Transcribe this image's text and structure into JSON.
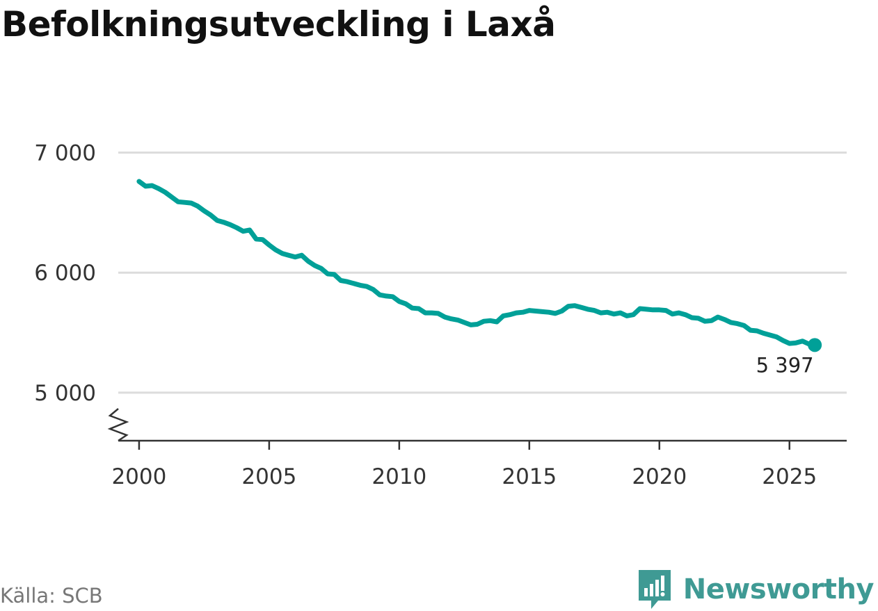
{
  "title": "Befolkningsutveckling i Laxå",
  "source": "Källa: SCB",
  "brand": {
    "name": "Newsworthy",
    "icon": "newsworthy-logo-icon",
    "color": "#3f9a94"
  },
  "chart_data": {
    "type": "line",
    "title": "Befolkningsutveckling i Laxå",
    "xlabel": "",
    "ylabel": "",
    "xlim": [
      1999.2,
      2027.2
    ],
    "ylim": [
      4600,
      7200
    ],
    "y_axis_break": true,
    "x_ticks": [
      2000,
      2005,
      2010,
      2015,
      2020,
      2025
    ],
    "x_tick_labels": [
      "2000",
      "2005",
      "2010",
      "2015",
      "2020",
      "2025"
    ],
    "y_ticks": [
      5000,
      6000,
      7000
    ],
    "y_tick_labels": [
      "5 000",
      "6 000",
      "7 000"
    ],
    "grid": "horizontal",
    "color": "#00a098",
    "end_label": "5 397",
    "series": [
      {
        "x": [
          2000.0,
          2000.25,
          2000.5,
          2000.75,
          2001.0,
          2001.25,
          2001.5,
          2001.75,
          2002.0,
          2002.25,
          2002.5,
          2002.75,
          2003.0,
          2003.25,
          2003.5,
          2003.75,
          2004.0,
          2004.25,
          2004.5,
          2004.75,
          2005.0,
          2005.25,
          2005.5,
          2005.75,
          2006.0,
          2006.25,
          2006.5,
          2006.75,
          2007.0,
          2007.25,
          2007.5,
          2007.75,
          2008.0,
          2008.25,
          2008.5,
          2008.75,
          2009.0,
          2009.25,
          2009.5,
          2009.75,
          2010.0,
          2010.25,
          2010.5,
          2010.75,
          2011.0,
          2011.25,
          2011.5,
          2011.75,
          2012.0,
          2012.25,
          2012.5,
          2012.75,
          2013.0,
          2013.25,
          2013.5,
          2013.75,
          2014.0,
          2014.25,
          2014.5,
          2014.75,
          2015.0,
          2015.25,
          2015.5,
          2015.75,
          2016.0,
          2016.25,
          2016.5,
          2016.75,
          2017.0,
          2017.25,
          2017.5,
          2017.75,
          2018.0,
          2018.25,
          2018.5,
          2018.75,
          2019.0,
          2019.25,
          2019.5,
          2019.75,
          2020.0,
          2020.25,
          2020.5,
          2020.75,
          2021.0,
          2021.25,
          2021.5,
          2021.75,
          2022.0,
          2022.25,
          2022.5,
          2022.75,
          2023.0,
          2023.25,
          2023.5,
          2023.75,
          2024.0,
          2024.25,
          2024.5,
          2024.75,
          2025.0,
          2025.25,
          2025.5,
          2025.75,
          2026.0
        ],
        "y": [
          6760,
          6720,
          6725,
          6700,
          6670,
          6630,
          6590,
          6585,
          6580,
          6555,
          6515,
          6480,
          6435,
          6420,
          6400,
          6375,
          6345,
          6355,
          6280,
          6275,
          6230,
          6190,
          6160,
          6145,
          6130,
          6145,
          6095,
          6060,
          6035,
          5990,
          5985,
          5935,
          5925,
          5910,
          5895,
          5885,
          5860,
          5815,
          5805,
          5800,
          5760,
          5740,
          5705,
          5700,
          5665,
          5665,
          5660,
          5630,
          5615,
          5605,
          5585,
          5565,
          5570,
          5595,
          5600,
          5590,
          5640,
          5650,
          5665,
          5670,
          5685,
          5680,
          5675,
          5670,
          5660,
          5680,
          5720,
          5725,
          5710,
          5695,
          5685,
          5665,
          5670,
          5655,
          5665,
          5640,
          5650,
          5700,
          5695,
          5690,
          5690,
          5685,
          5655,
          5665,
          5650,
          5625,
          5620,
          5595,
          5600,
          5630,
          5610,
          5585,
          5575,
          5560,
          5520,
          5515,
          5495,
          5480,
          5465,
          5435,
          5410,
          5415,
          5430,
          5405,
          5397
        ]
      }
    ]
  }
}
